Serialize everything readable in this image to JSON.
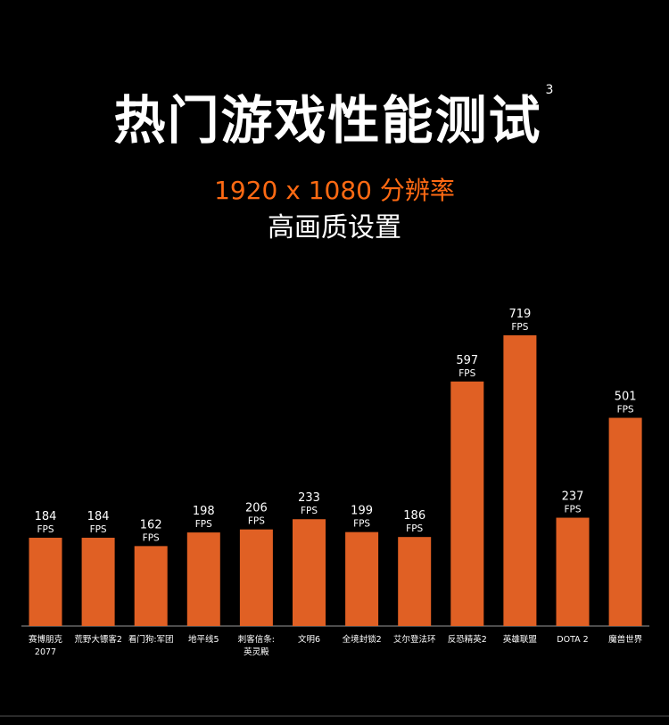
{
  "title": "热门游戏性能测试",
  "footnote": "3",
  "resolution": "1920 x 1080 分辨率",
  "quality": "高画质设置",
  "colors": {
    "bar": "#e06024",
    "accent": "#ff6a13",
    "axis": "#666666"
  },
  "chart_data": {
    "type": "bar",
    "title": "热门游戏性能测试",
    "unit": "FPS",
    "categories": [
      [
        "赛博朋克",
        "2077"
      ],
      [
        "荒野大镖客2"
      ],
      [
        "看门狗:军团"
      ],
      [
        "地平线5"
      ],
      [
        "刺客信条:",
        "英灵殿"
      ],
      [
        "文明6"
      ],
      [
        "全境封锁2"
      ],
      [
        "艾尔登法环"
      ],
      [
        "反恐精英2"
      ],
      [
        "英雄联盟"
      ],
      [
        "DOTA 2"
      ],
      [
        "魔兽世界"
      ]
    ],
    "values": [
      184,
      184,
      162,
      198,
      206,
      233,
      199,
      186,
      597,
      719,
      237,
      501
    ],
    "xlabel": "",
    "ylabel": "FPS",
    "grid": false
  }
}
